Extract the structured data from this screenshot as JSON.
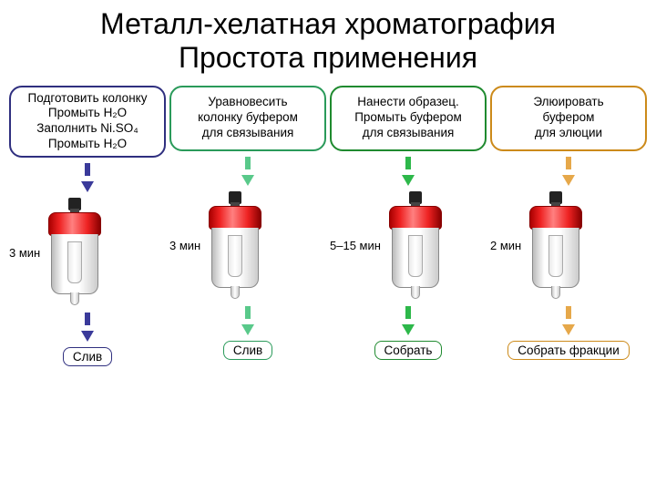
{
  "title_line1": "Металл-хелатная хроматография",
  "title_line2": "Простота применения",
  "colors": {
    "step1_border": "#2f2f7f",
    "step1_arrow": "#3a3a9a",
    "step2_border": "#2a9a5a",
    "step2_arrow": "#59c98a",
    "step3_border": "#1f8a2f",
    "step3_arrow": "#2db84a",
    "step4_border": "#cc8a1a",
    "step4_arrow": "#e6a84a",
    "column_red": "#d51f1f"
  },
  "steps": [
    {
      "box_lines": [
        "Подготовить колонку",
        "Промыть H₂O",
        "Заполнить Ni.SO₄",
        "Промыть H₂O"
      ],
      "time": "3 мин",
      "action": "Слив"
    },
    {
      "box_lines": [
        "Уравновесить",
        "колонку буфером",
        "для связывания"
      ],
      "time": "3 мин",
      "action": "Слив"
    },
    {
      "box_lines": [
        "Нанести образец.",
        "Промыть буфером",
        "для связывания"
      ],
      "time": "5–15 мин",
      "action": "Собрать"
    },
    {
      "box_lines": [
        "Элюировать",
        "буфером",
        "для элюции"
      ],
      "time": "2 мин",
      "action": "Собрать фракции"
    }
  ]
}
